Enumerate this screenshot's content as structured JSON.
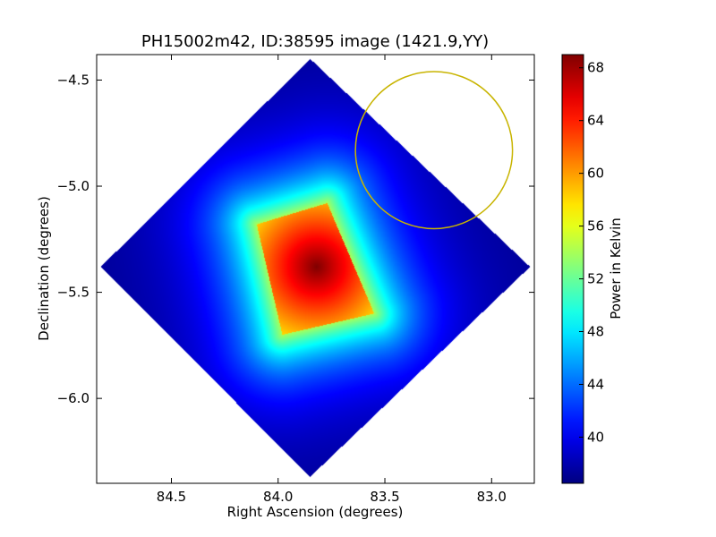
{
  "chart_data": {
    "type": "heatmap",
    "title": "PH15002m42, ID:38595 image (1421.9,YY)",
    "xlabel": "Right Ascension (degrees)",
    "ylabel": "Declination (degrees)",
    "xlim": [
      84.85,
      82.8
    ],
    "ylim": [
      -6.4,
      -4.38
    ],
    "x_ticks": [
      {
        "value": 84.5,
        "label": "84.5"
      },
      {
        "value": 84.0,
        "label": "84.0"
      },
      {
        "value": 83.5,
        "label": "83.5"
      },
      {
        "value": 83.0,
        "label": "83.0"
      }
    ],
    "y_ticks": [
      {
        "value": -4.5,
        "label": "−4.5"
      },
      {
        "value": -5.0,
        "label": "−5.0"
      },
      {
        "value": -5.5,
        "label": "−5.5"
      },
      {
        "value": -6.0,
        "label": "−6.0"
      }
    ],
    "colorbar": {
      "label": "Power in Kelvin",
      "range": [
        36.5,
        69
      ],
      "colormap": "jet",
      "ticks": [
        {
          "value": 40,
          "label": "40"
        },
        {
          "value": 44,
          "label": "44"
        },
        {
          "value": 48,
          "label": "48"
        },
        {
          "value": 52,
          "label": "52"
        },
        {
          "value": 56,
          "label": "56"
        },
        {
          "value": 60,
          "label": "60"
        },
        {
          "value": 64,
          "label": "64"
        },
        {
          "value": 68,
          "label": "68"
        }
      ]
    },
    "footprint": {
      "vertices": [
        [
          83.85,
          -4.4
        ],
        [
          84.83,
          -5.38
        ],
        [
          83.85,
          -6.37
        ],
        [
          82.82,
          -5.38
        ]
      ],
      "background_value": 37
    },
    "hotspot": {
      "vertices": [
        [
          83.77,
          -5.08
        ],
        [
          84.1,
          -5.18
        ],
        [
          83.98,
          -5.7
        ],
        [
          83.55,
          -5.6
        ]
      ],
      "peak": [
        83.82,
        -5.38
      ],
      "peak_value": 69,
      "edge_value": 54,
      "falloff_deg": 0.38
    },
    "marker": {
      "type": "circle",
      "center": [
        83.27,
        -4.83
      ],
      "radius_dec": 0.37,
      "color": "#c8b400"
    }
  }
}
